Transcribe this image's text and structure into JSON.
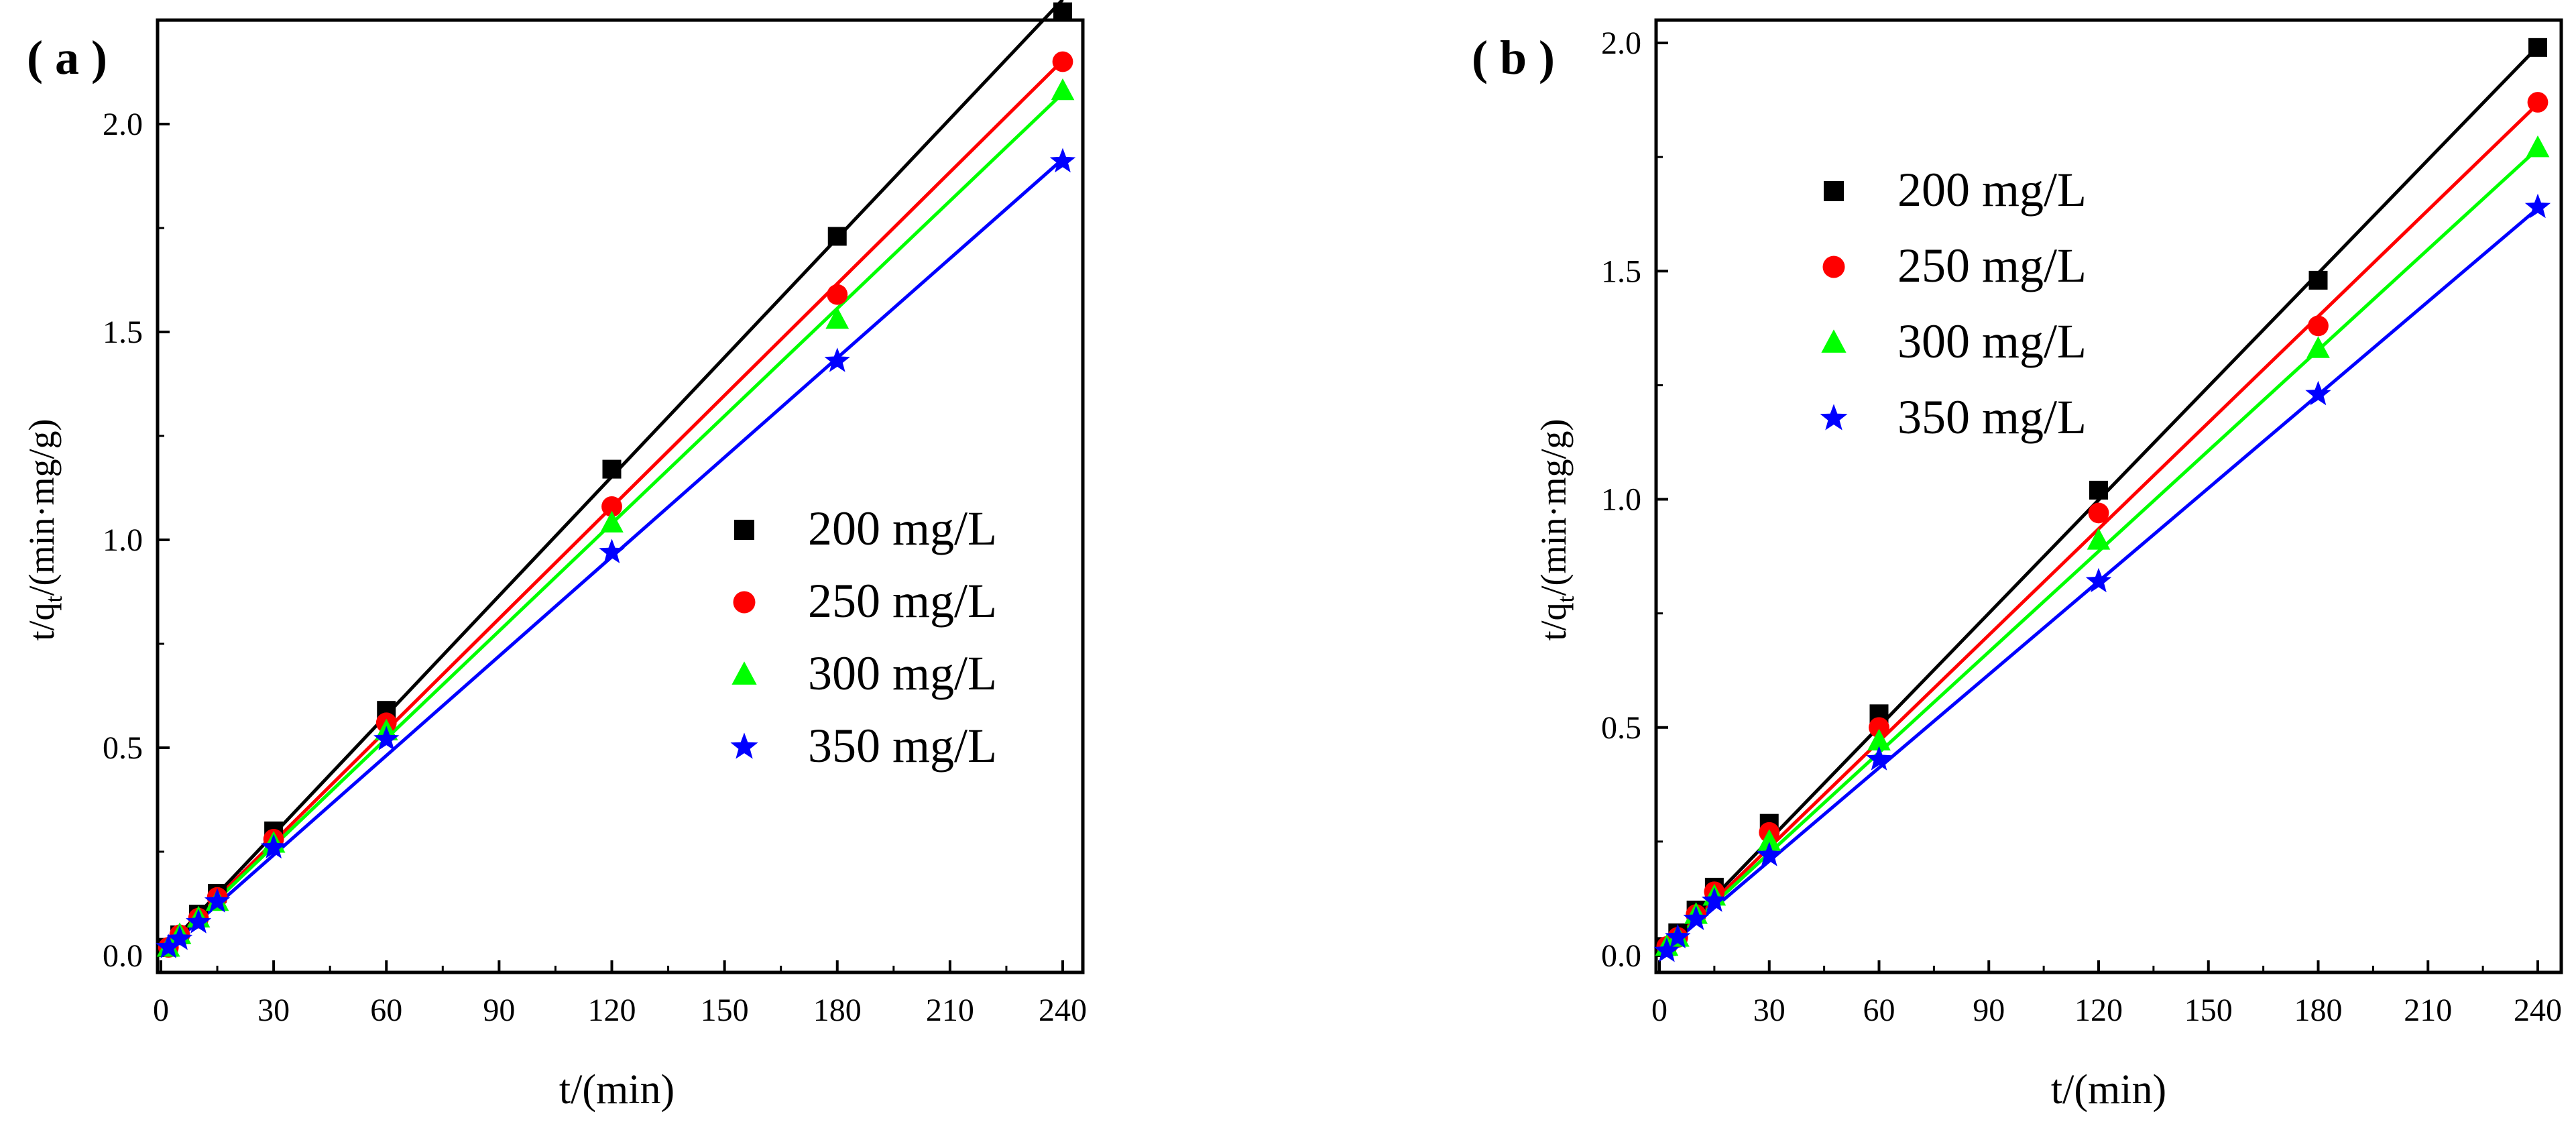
{
  "chart_data": [
    {
      "type": "scatter",
      "panel_label": "( a )",
      "xlabel": "t/(min)",
      "ylabel_main": "t/q",
      "ylabel_sub": "t",
      "ylabel_tail": "/(min·mg/g)",
      "xlim": [
        0,
        240
      ],
      "ylim": [
        0,
        2.25
      ],
      "xticks": [
        0,
        30,
        60,
        90,
        120,
        150,
        180,
        210,
        240
      ],
      "yticks": [
        0.0,
        0.5,
        1.0,
        1.5,
        2.0
      ],
      "ytick_labels": [
        "0.0",
        "0.5",
        "1.0",
        "1.5",
        "2.0"
      ],
      "x": [
        2,
        5,
        10,
        15,
        30,
        60,
        120,
        180,
        240
      ],
      "legend_position": "middle-right",
      "series": [
        {
          "name": "200 mg/L",
          "color": "#000000",
          "marker": "square",
          "values": [
            0.02,
            0.05,
            0.1,
            0.15,
            0.3,
            0.59,
            1.17,
            1.73,
            2.27
          ],
          "fit": [
            0.005,
            0.00956
          ]
        },
        {
          "name": "250 mg/L",
          "color": "#ff0000",
          "marker": "circle",
          "values": [
            0.02,
            0.05,
            0.09,
            0.14,
            0.28,
            0.56,
            1.08,
            1.59,
            2.15
          ],
          "fit": [
            0.005,
            0.00895
          ]
        },
        {
          "name": "300 mg/L",
          "color": "#00ff00",
          "marker": "triangle",
          "values": [
            0.02,
            0.05,
            0.09,
            0.13,
            0.27,
            0.54,
            1.04,
            1.53,
            2.08
          ],
          "fit": [
            0.005,
            0.00862
          ]
        },
        {
          "name": "350 mg/L",
          "color": "#0000ff",
          "marker": "star",
          "values": [
            0.02,
            0.04,
            0.08,
            0.13,
            0.26,
            0.52,
            0.97,
            1.43,
            1.91
          ],
          "fit": [
            0.003,
            0.00797
          ]
        }
      ]
    },
    {
      "type": "scatter",
      "panel_label": "( b )",
      "xlabel": "t/(min)",
      "ylabel_main": "t/q",
      "ylabel_sub": "t",
      "ylabel_tail": "/(min·mg/g)",
      "xlim": [
        0,
        240
      ],
      "ylim": [
        0,
        2.05
      ],
      "xticks": [
        0,
        30,
        60,
        90,
        120,
        150,
        180,
        210,
        240
      ],
      "yticks": [
        0.0,
        0.5,
        1.0,
        1.5,
        2.0
      ],
      "ytick_labels": [
        "0.0",
        "0.5",
        "1.0",
        "1.5",
        "2.0"
      ],
      "x": [
        2,
        5,
        10,
        15,
        30,
        60,
        120,
        180,
        240
      ],
      "legend_position": "upper-left",
      "series": [
        {
          "name": "200 mg/L",
          "color": "#000000",
          "marker": "square",
          "values": [
            0.02,
            0.05,
            0.1,
            0.15,
            0.29,
            0.53,
            1.02,
            1.48,
            1.99
          ],
          "fit": [
            0.005,
            0.00828
          ]
        },
        {
          "name": "250 mg/L",
          "color": "#ff0000",
          "marker": "circle",
          "values": [
            0.02,
            0.04,
            0.09,
            0.14,
            0.27,
            0.5,
            0.97,
            1.38,
            1.87
          ],
          "fit": [
            0.004,
            0.00776
          ]
        },
        {
          "name": "300 mg/L",
          "color": "#00ff00",
          "marker": "triangle",
          "values": [
            0.02,
            0.04,
            0.09,
            0.13,
            0.25,
            0.47,
            0.91,
            1.33,
            1.77
          ],
          "fit": [
            0.004,
            0.00735
          ]
        },
        {
          "name": "350 mg/L",
          "color": "#0000ff",
          "marker": "star",
          "values": [
            0.01,
            0.04,
            0.08,
            0.12,
            0.22,
            0.43,
            0.82,
            1.23,
            1.64
          ],
          "fit": [
            0.003,
            0.00681
          ]
        }
      ]
    }
  ]
}
